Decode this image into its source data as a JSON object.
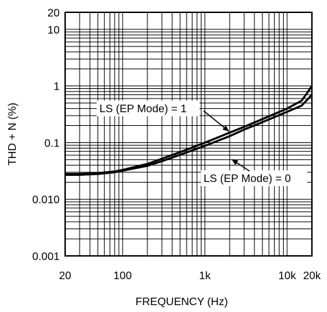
{
  "chart_data": {
    "type": "line",
    "xlabel": "FREQUENCY (Hz)",
    "ylabel": "THD + N (%)",
    "x_scale": "log",
    "y_scale": "log",
    "xlim": [
      20,
      20000
    ],
    "ylim": [
      0.001,
      20
    ],
    "grid": true,
    "x_ticks": [
      {
        "value": 20,
        "label": "20"
      },
      {
        "value": 100,
        "label": "100"
      },
      {
        "value": 1000,
        "label": "1k"
      },
      {
        "value": 10000,
        "label": "10k"
      },
      {
        "value": 20000,
        "label": "20k"
      }
    ],
    "y_ticks": [
      {
        "value": 0.001,
        "label": "0.001"
      },
      {
        "value": 0.01,
        "label": "0.010"
      },
      {
        "value": 0.1,
        "label": "0.1"
      },
      {
        "value": 1,
        "label": "1"
      },
      {
        "value": 10,
        "label": "10"
      },
      {
        "value": 20,
        "label": "20"
      }
    ],
    "series": [
      {
        "name": "LS (EP Mode) = 1",
        "x": [
          20,
          30,
          50,
          80,
          100,
          200,
          300,
          500,
          1000,
          2000,
          3000,
          5000,
          10000,
          15000,
          20000
        ],
        "y": [
          0.028,
          0.028,
          0.029,
          0.031,
          0.033,
          0.042,
          0.052,
          0.068,
          0.1,
          0.15,
          0.19,
          0.26,
          0.4,
          0.55,
          1.0
        ]
      },
      {
        "name": "LS (EP Mode) = 0",
        "x": [
          20,
          30,
          50,
          80,
          100,
          200,
          300,
          500,
          1000,
          2000,
          3000,
          5000,
          10000,
          15000,
          20000
        ],
        "y": [
          0.027,
          0.027,
          0.028,
          0.03,
          0.032,
          0.039,
          0.047,
          0.061,
          0.088,
          0.13,
          0.17,
          0.23,
          0.35,
          0.45,
          0.7
        ]
      }
    ],
    "annotations": [
      {
        "text": "LS (EP Mode) = 1",
        "series": 0
      },
      {
        "text": "LS (EP Mode) = 0",
        "series": 1
      }
    ]
  }
}
